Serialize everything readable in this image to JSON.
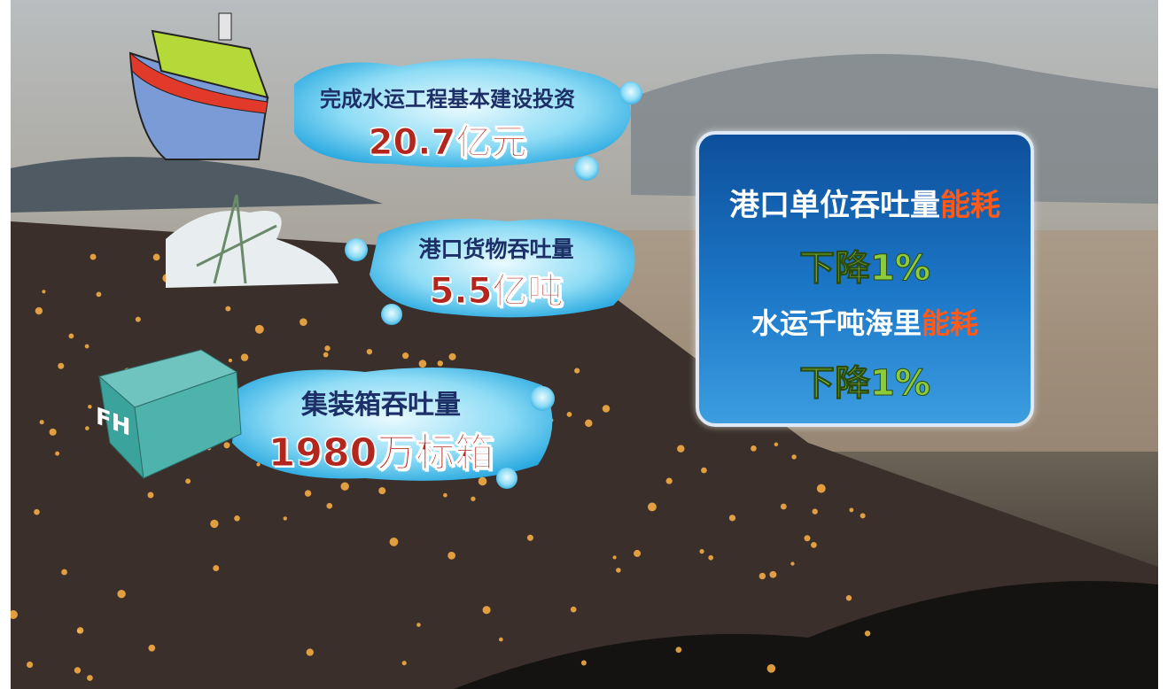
{
  "stats": [
    {
      "label": "完成水运工程基本建设投资",
      "value": "20.7亿元"
    },
    {
      "label": "港口货物吞吐量",
      "value": "5.5亿吨"
    },
    {
      "label": "集装箱吞吐量",
      "value": "1980万标箱"
    }
  ],
  "panel": {
    "items": [
      {
        "prefix": "港口单位吞吐量",
        "highlight": "能耗",
        "change": "下降1%"
      },
      {
        "prefix": "水运千吨海里",
        "highlight": "能耗",
        "change": "下降1%"
      }
    ]
  },
  "container_mark": "FH"
}
